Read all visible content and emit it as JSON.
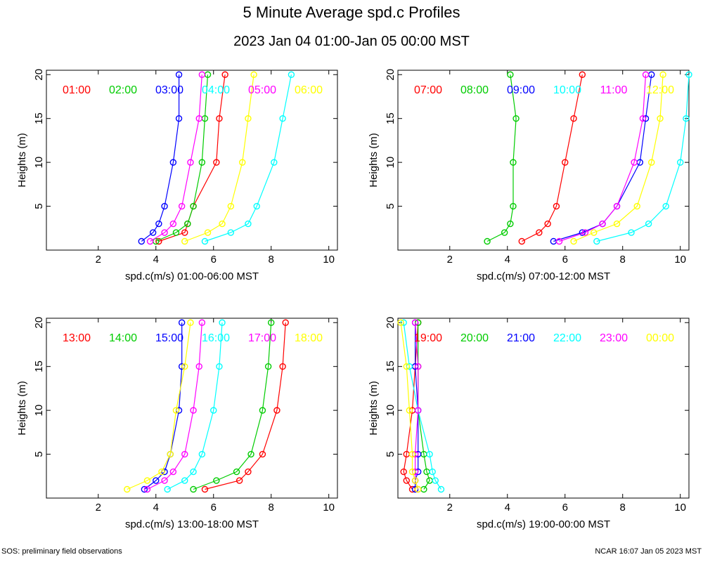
{
  "title": "5 Minute Average spd.c Profiles",
  "subtitle": "2023 Jan 04 01:00-Jan 05 00:00 MST",
  "footer_left": "SOS: preliminary field observations",
  "footer_right": "NCAR 16:07 Jan 05 2023 MST",
  "colors": [
    "#ff0000",
    "#00cc00",
    "#0000ff",
    "#00ffff",
    "#ff00ff",
    "#ffff00"
  ],
  "chart_data": [
    {
      "type": "line",
      "xlabel": "spd.c(m/s) 01:00-06:00 MST",
      "ylabel": "Heights (m)",
      "xlim": [
        0.2,
        10.3
      ],
      "ylim": [
        0,
        20.5
      ],
      "xticks": [
        2,
        4,
        6,
        8,
        10
      ],
      "yticks": [
        5,
        10,
        15,
        20
      ],
      "heights": [
        1,
        2,
        3,
        5,
        10,
        15,
        20
      ],
      "series": [
        {
          "name": "01:00",
          "values": [
            4.1,
            5.0,
            5.1,
            5.3,
            6.1,
            6.2,
            6.4
          ]
        },
        {
          "name": "02:00",
          "values": [
            4.0,
            4.7,
            5.1,
            5.3,
            5.6,
            5.7,
            5.8
          ]
        },
        {
          "name": "03:00",
          "values": [
            3.5,
            3.9,
            4.1,
            4.3,
            4.6,
            4.8,
            4.8
          ]
        },
        {
          "name": "04:00",
          "values": [
            5.7,
            6.6,
            7.2,
            7.5,
            8.1,
            8.4,
            8.7
          ]
        },
        {
          "name": "05:00",
          "values": [
            3.8,
            4.3,
            4.6,
            4.9,
            5.2,
            5.5,
            5.6
          ]
        },
        {
          "name": "06:00",
          "values": [
            5.0,
            5.8,
            6.3,
            6.6,
            7.0,
            7.2,
            7.4
          ]
        }
      ]
    },
    {
      "type": "line",
      "xlabel": "spd.c(m/s) 07:00-12:00 MST",
      "ylabel": "Heights (m)",
      "xlim": [
        0.2,
        10.3
      ],
      "ylim": [
        0,
        20.5
      ],
      "xticks": [
        2,
        4,
        6,
        8,
        10
      ],
      "yticks": [
        5,
        10,
        15,
        20
      ],
      "heights": [
        1,
        2,
        3,
        5,
        10,
        15,
        20
      ],
      "series": [
        {
          "name": "07:00",
          "values": [
            4.5,
            5.1,
            5.4,
            5.7,
            6.0,
            6.3,
            6.6
          ]
        },
        {
          "name": "08:00",
          "values": [
            3.3,
            3.9,
            4.1,
            4.2,
            4.2,
            4.3,
            4.1
          ]
        },
        {
          "name": "09:00",
          "values": [
            5.6,
            6.6,
            7.3,
            7.8,
            8.6,
            8.8,
            9.0
          ]
        },
        {
          "name": "10:00",
          "values": [
            7.1,
            8.3,
            8.9,
            9.5,
            10.0,
            10.2,
            10.3
          ]
        },
        {
          "name": "11:00",
          "values": [
            5.8,
            6.7,
            7.3,
            7.8,
            8.4,
            8.7,
            8.8
          ]
        },
        {
          "name": "12:00",
          "values": [
            6.3,
            7.0,
            7.8,
            8.5,
            9.0,
            9.3,
            9.4
          ]
        }
      ]
    },
    {
      "type": "line",
      "xlabel": "spd.c(m/s) 13:00-18:00 MST",
      "ylabel": "Heights (m)",
      "xlim": [
        0.2,
        10.3
      ],
      "ylim": [
        0,
        20.5
      ],
      "xticks": [
        2,
        4,
        6,
        8,
        10
      ],
      "yticks": [
        5,
        10,
        15,
        20
      ],
      "heights": [
        1,
        2,
        3,
        5,
        10,
        15,
        20
      ],
      "series": [
        {
          "name": "13:00",
          "values": [
            5.7,
            6.9,
            7.2,
            7.7,
            8.2,
            8.4,
            8.5
          ]
        },
        {
          "name": "14:00",
          "values": [
            5.3,
            6.1,
            6.8,
            7.3,
            7.7,
            7.9,
            8.0
          ]
        },
        {
          "name": "15:00",
          "values": [
            3.6,
            4.0,
            4.3,
            4.5,
            4.8,
            4.9,
            4.9
          ]
        },
        {
          "name": "16:00",
          "values": [
            4.4,
            5.0,
            5.3,
            5.6,
            6.0,
            6.2,
            6.3
          ]
        },
        {
          "name": "17:00",
          "values": [
            3.7,
            4.3,
            4.6,
            5.0,
            5.3,
            5.5,
            5.6
          ]
        },
        {
          "name": "18:00",
          "values": [
            3.0,
            3.7,
            4.2,
            4.5,
            4.7,
            5.0,
            5.2
          ]
        }
      ]
    },
    {
      "type": "line",
      "xlabel": "spd.c(m/s) 19:00-00:00 MST",
      "ylabel": "Heights (m)",
      "xlim": [
        0.2,
        10.3
      ],
      "ylim": [
        0,
        20.5
      ],
      "xticks": [
        2,
        4,
        6,
        8,
        10
      ],
      "yticks": [
        5,
        10,
        15,
        20
      ],
      "heights": [
        1,
        2,
        3,
        5,
        10,
        15,
        20
      ],
      "series": [
        {
          "name": "19:00",
          "values": [
            0.7,
            0.5,
            0.4,
            0.5,
            0.7,
            0.8,
            0.9
          ]
        },
        {
          "name": "20:00",
          "values": [
            1.1,
            1.3,
            1.2,
            1.1,
            0.9,
            0.9,
            0.9
          ]
        },
        {
          "name": "21:00",
          "values": [
            0.8,
            0.8,
            0.9,
            0.9,
            0.9,
            0.8,
            0.8
          ]
        },
        {
          "name": "22:00",
          "values": [
            1.7,
            1.5,
            1.4,
            1.3,
            0.9,
            0.6,
            0.4
          ]
        },
        {
          "name": "23:00",
          "values": [
            0.9,
            0.8,
            0.8,
            0.8,
            0.9,
            0.9,
            0.8
          ]
        },
        {
          "name": "00:00",
          "values": [
            0.9,
            0.8,
            0.7,
            0.7,
            0.6,
            0.5,
            0.3
          ]
        }
      ]
    }
  ]
}
